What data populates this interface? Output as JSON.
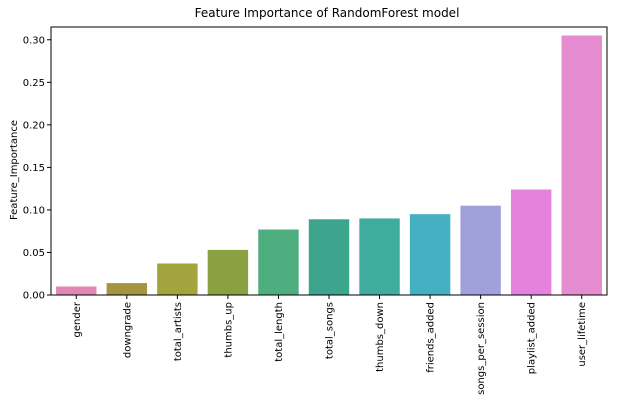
{
  "chart_data": {
    "type": "bar",
    "title": "Feature Importance of RandomForest model",
    "xlabel": "",
    "ylabel": "Feature_Importance",
    "ylim": [
      0,
      0.315
    ],
    "yticks": [
      "0.00",
      "0.05",
      "0.10",
      "0.15",
      "0.20",
      "0.25",
      "0.30"
    ],
    "grid": false,
    "legend": "none",
    "categories": [
      "gender",
      "downgrade",
      "total_artists",
      "thumbs_up",
      "total_length",
      "total_songs",
      "thumbs_down",
      "friends_added",
      "songs_per_session",
      "playlist_added",
      "user_lifetime"
    ],
    "values": [
      0.01,
      0.014,
      0.037,
      0.053,
      0.077,
      0.089,
      0.09,
      0.095,
      0.105,
      0.124,
      0.305
    ],
    "colors": [
      "#e087b6",
      "#a59442",
      "#a4a43f",
      "#89a140",
      "#4fae7f",
      "#3da58d",
      "#3fac9f",
      "#45b0c1",
      "#a0a1dc",
      "#e582dc",
      "#e58bd0"
    ]
  }
}
